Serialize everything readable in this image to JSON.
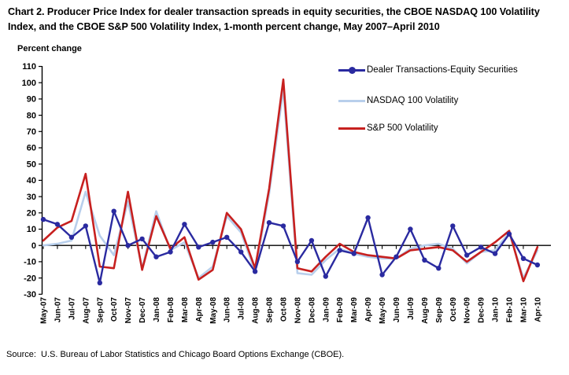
{
  "page": {
    "title": "Chart 2. Producer Price Index for dealer transaction spreads in equity securities, the CBOE NASDAQ 100 Volatility Index, and the CBOE S&P 500 Volatility Index, 1-month percent change, May 2007–April 2010",
    "y_axis_label": "Percent change",
    "source": "Source:  U.S. Bureau of Labor Statistics and Chicago Board Options Exchange (CBOE)."
  },
  "colors": {
    "dealer": "#2A2AA0",
    "nasdaq": "#B8CFEC",
    "sp500": "#C7201F",
    "axis": "#000000"
  },
  "chart_data": {
    "type": "line",
    "title": "Chart 2. Producer Price Index for dealer transaction spreads in equity securities, the CBOE NASDAQ 100 Volatility Index, and the CBOE S&P 500 Volatility Index, 1-month percent change, May 2007–April 2010",
    "ylabel": "Percent change",
    "ylim": [
      -30,
      110
    ],
    "ytick_step": 10,
    "grid": false,
    "legend_position": "upper-right-inside",
    "categories": [
      "May-07",
      "Jun-07",
      "Jul-07",
      "Aug-07",
      "Sep-07",
      "Oct-07",
      "Nov-07",
      "Dec-07",
      "Jan-08",
      "Feb-08",
      "Mar-08",
      "Apr-08",
      "May-08",
      "Jun-08",
      "Jul-08",
      "Aug-08",
      "Sep-08",
      "Oct-08",
      "Nov-08",
      "Dec-08",
      "Jan-09",
      "Feb-09",
      "Mar-09",
      "Apr-09",
      "May-09",
      "Jun-09",
      "Jul-09",
      "Aug-09",
      "Sep-09",
      "Oct-09",
      "Nov-09",
      "Dec-09",
      "Jan-10",
      "Feb-10",
      "Mar-10",
      "Apr-10"
    ],
    "series": [
      {
        "name": "Dealer Transactions-Equity Securities",
        "color": "#2A2AA0",
        "marker": "circle",
        "values": [
          16,
          13,
          5,
          12,
          -23,
          21,
          0,
          4,
          -7,
          -4,
          13,
          -1,
          2,
          5,
          -4,
          -16,
          14,
          12,
          -10,
          3,
          -19,
          -3,
          -5,
          17,
          -18,
          -7,
          10,
          -9,
          -14,
          12,
          -6,
          -1,
          -5,
          7,
          -8,
          -12
        ]
      },
      {
        "name": "NASDAQ 100 Volatility",
        "color": "#B8CFEC",
        "marker": "none",
        "values": [
          0,
          1,
          3,
          33,
          6,
          -6,
          27,
          -14,
          21,
          -3,
          2,
          -20,
          -13,
          18,
          8,
          -16,
          32,
          96,
          -17,
          -18,
          -9,
          -2,
          -5,
          -7,
          -8,
          -8,
          -2,
          0,
          1,
          -2,
          -11,
          -4,
          -3,
          8,
          -20,
          -3
        ]
      },
      {
        "name": "S&P 500 Volatility",
        "color": "#C7201F",
        "marker": "none",
        "values": [
          3,
          11,
          15,
          44,
          -13,
          -14,
          33,
          -15,
          18,
          -2,
          5,
          -21,
          -15,
          20,
          10,
          -14,
          35,
          102,
          -14,
          -16,
          -7,
          1,
          -4,
          -6,
          -7,
          -8,
          -3,
          -2,
          -1,
          -3,
          -10,
          -4,
          2,
          9,
          -22,
          -1
        ]
      }
    ]
  }
}
